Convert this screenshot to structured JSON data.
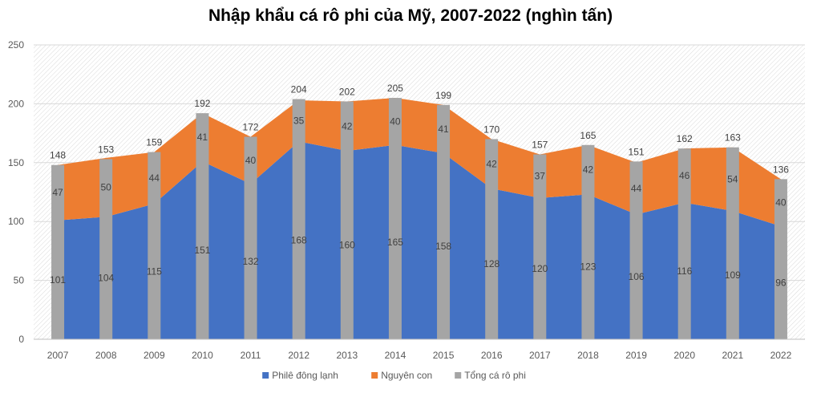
{
  "chart_data": {
    "type": "area",
    "title": "Nhập khẩu cá rô phi của Mỹ, 2007-2022 (nghìn tấn)",
    "xlabel": "",
    "ylabel": "",
    "ylim": [
      0,
      250
    ],
    "yticks": [
      0,
      50,
      100,
      150,
      200,
      250
    ],
    "grid": true,
    "legend_position": "bottom",
    "categories": [
      "2007",
      "2008",
      "2009",
      "2010",
      "2011",
      "2012",
      "2013",
      "2014",
      "2015",
      "2016",
      "2017",
      "2018",
      "2019",
      "2020",
      "2021",
      "2022"
    ],
    "series": [
      {
        "name": "Philê đông lạnh",
        "chart_type": "stacked-area",
        "color": "#4472C4",
        "values": [
          101,
          104,
          115,
          151,
          132,
          168,
          160,
          165,
          158,
          128,
          120,
          123,
          106,
          116,
          109,
          96
        ]
      },
      {
        "name": "Nguyên con",
        "chart_type": "stacked-area",
        "color": "#ED7D31",
        "values": [
          47,
          50,
          44,
          41,
          40,
          35,
          42,
          40,
          41,
          42,
          37,
          42,
          44,
          46,
          54,
          40
        ]
      },
      {
        "name": "Tổng cá rô phi",
        "chart_type": "bar",
        "color": "#A5A5A5",
        "values": [
          148,
          153,
          159,
          192,
          172,
          204,
          202,
          205,
          199,
          170,
          157,
          165,
          151,
          162,
          163,
          136
        ]
      }
    ]
  }
}
